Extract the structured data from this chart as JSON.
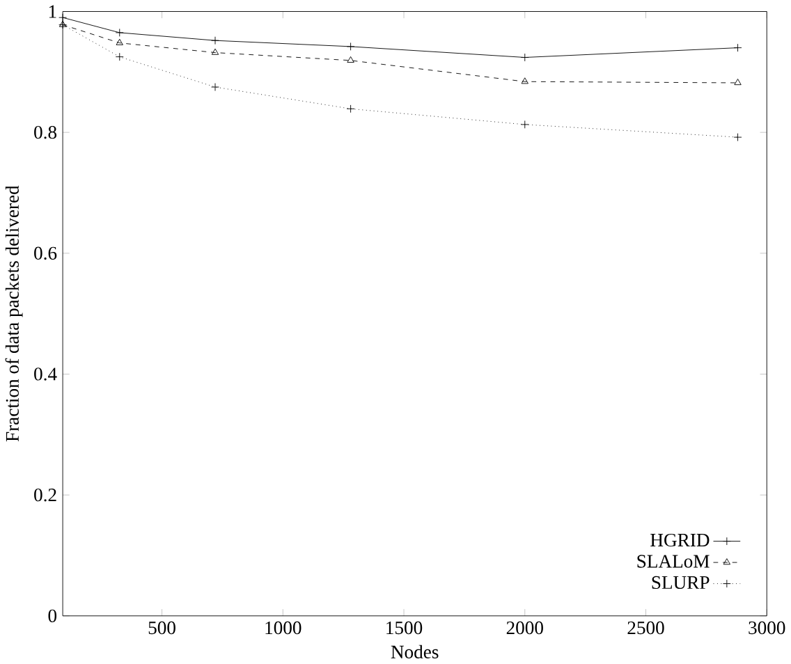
{
  "chart_data": {
    "type": "line",
    "xlabel": "Nodes",
    "ylabel": "Fraction of data packets delivered",
    "x": [
      90,
      325,
      720,
      1280,
      2000,
      2880
    ],
    "xlim": [
      90,
      3000
    ],
    "xticks": [
      500,
      1000,
      1500,
      2000,
      2500,
      3000
    ],
    "ylim": [
      0,
      1
    ],
    "yticks": [
      0,
      0.2,
      0.4,
      0.6,
      0.8,
      1
    ],
    "legend": "bottom right",
    "grid": false,
    "series": [
      {
        "name": "HGRID",
        "color": "#000000",
        "values": [
          0.99,
          0.965,
          0.952,
          0.942,
          0.924,
          0.94
        ],
        "line_style": "solid",
        "marker": "cross"
      },
      {
        "name": "SLALoM",
        "color": "#000000",
        "values": [
          0.978,
          0.948,
          0.932,
          0.919,
          0.884,
          0.882
        ],
        "line_style": "dashed",
        "marker": "triangle"
      },
      {
        "name": "SLURP",
        "color": "#000000",
        "values": [
          0.978,
          0.925,
          0.875,
          0.839,
          0.813,
          0.792
        ],
        "line_style": "dotted",
        "marker": "cross"
      }
    ]
  }
}
